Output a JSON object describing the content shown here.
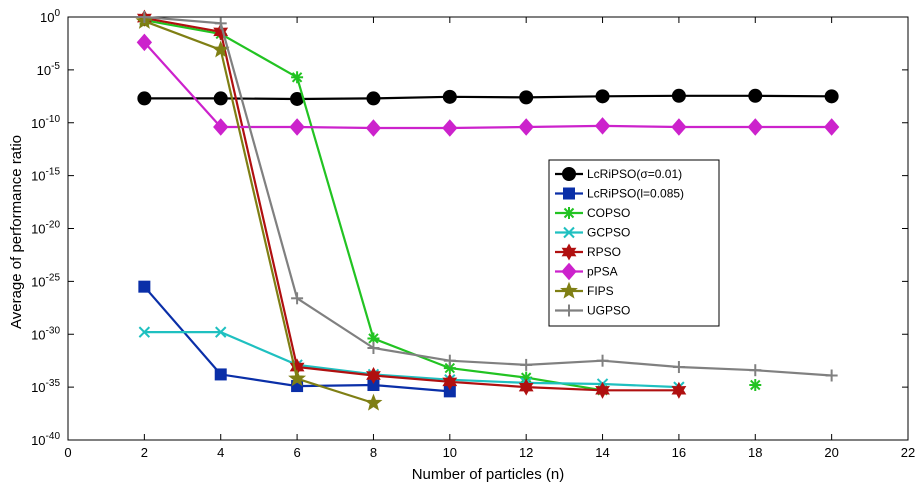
{
  "chart_data": {
    "type": "line",
    "xlabel": "Number of particles (n)",
    "ylabel": "Average of performance ratio",
    "y_scale": "log10",
    "xlim": [
      0,
      22
    ],
    "ylim_exponent": [
      -40,
      0
    ],
    "x_ticks": [
      "0",
      "2",
      "4",
      "6",
      "8",
      "10",
      "12",
      "14",
      "16",
      "18",
      "20",
      "22"
    ],
    "y_tick_base": "10",
    "y_tick_exponents": [
      "0",
      "-5",
      "-10",
      "-15",
      "-20",
      "-25",
      "-30",
      "-35",
      "-40"
    ],
    "grid": false,
    "legend_position": "right",
    "series": [
      {
        "name": "LcRiPSO(σ=0.01)",
        "color": "#000000",
        "marker": "circle",
        "points": [
          [
            2,
            -7.7
          ],
          [
            4,
            -7.7
          ],
          [
            6,
            -7.75
          ],
          [
            8,
            -7.7
          ],
          [
            10,
            -7.55
          ],
          [
            12,
            -7.6
          ],
          [
            14,
            -7.5
          ],
          [
            16,
            -7.45
          ],
          [
            18,
            -7.45
          ],
          [
            20,
            -7.5
          ]
        ]
      },
      {
        "name": "LcRiPSO(l=0.085)",
        "color": "#0a2fa8",
        "marker": "square",
        "points": [
          [
            2,
            -25.5
          ],
          [
            4,
            -33.8
          ],
          [
            6,
            -34.9
          ],
          [
            8,
            -34.8
          ],
          [
            10,
            -35.4
          ]
        ]
      },
      {
        "name": "COPSO",
        "color": "#22c322",
        "marker": "asterisk",
        "points": [
          [
            2,
            -0.3
          ],
          [
            4,
            -1.6
          ],
          [
            6,
            -5.7
          ],
          [
            8,
            -30.4
          ],
          [
            10,
            -33.2
          ],
          [
            12,
            -34.1
          ],
          [
            14,
            -35.3
          ],
          [
            null,
            null
          ],
          [
            18,
            -34.8
          ]
        ]
      },
      {
        "name": "GCPSO",
        "color": "#1fc0c0",
        "marker": "x",
        "points": [
          [
            2,
            -29.8
          ],
          [
            4,
            -29.8
          ],
          [
            6,
            -32.9
          ],
          [
            8,
            -33.8
          ],
          [
            10,
            -34.3
          ],
          [
            12,
            -34.6
          ],
          [
            14,
            -34.7
          ],
          [
            16,
            -35.0
          ]
        ]
      },
      {
        "name": "RPSO",
        "color": "#b01010",
        "marker": "hexagram",
        "points": [
          [
            2,
            -0.1
          ],
          [
            4,
            -1.4
          ],
          [
            6,
            -33.1
          ],
          [
            8,
            -33.9
          ],
          [
            10,
            -34.5
          ],
          [
            12,
            -35.0
          ],
          [
            14,
            -35.3
          ],
          [
            16,
            -35.3
          ]
        ]
      },
      {
        "name": "pPSA",
        "color": "#cc22cc",
        "marker": "diamond",
        "points": [
          [
            2,
            -2.4
          ],
          [
            4,
            -10.4
          ],
          [
            6,
            -10.4
          ],
          [
            8,
            -10.5
          ],
          [
            10,
            -10.5
          ],
          [
            12,
            -10.4
          ],
          [
            14,
            -10.3
          ],
          [
            16,
            -10.4
          ],
          [
            18,
            -10.4
          ],
          [
            20,
            -10.4
          ]
        ]
      },
      {
        "name": "FIPS",
        "color": "#7f7f14",
        "marker": "pentagram",
        "points": [
          [
            2,
            -0.4
          ],
          [
            4,
            -3.1
          ],
          [
            6,
            -34.2
          ],
          [
            8,
            -36.5
          ]
        ]
      },
      {
        "name": "UGPSO",
        "color": "#808080",
        "marker": "plus",
        "points": [
          [
            2,
            0.0
          ],
          [
            4,
            -0.6
          ],
          [
            6,
            -26.6
          ],
          [
            8,
            -31.3
          ],
          [
            10,
            -32.5
          ],
          [
            12,
            -32.9
          ],
          [
            14,
            -32.5
          ],
          [
            16,
            -33.1
          ],
          [
            18,
            -33.4
          ],
          [
            20,
            -33.9
          ]
        ]
      }
    ]
  }
}
